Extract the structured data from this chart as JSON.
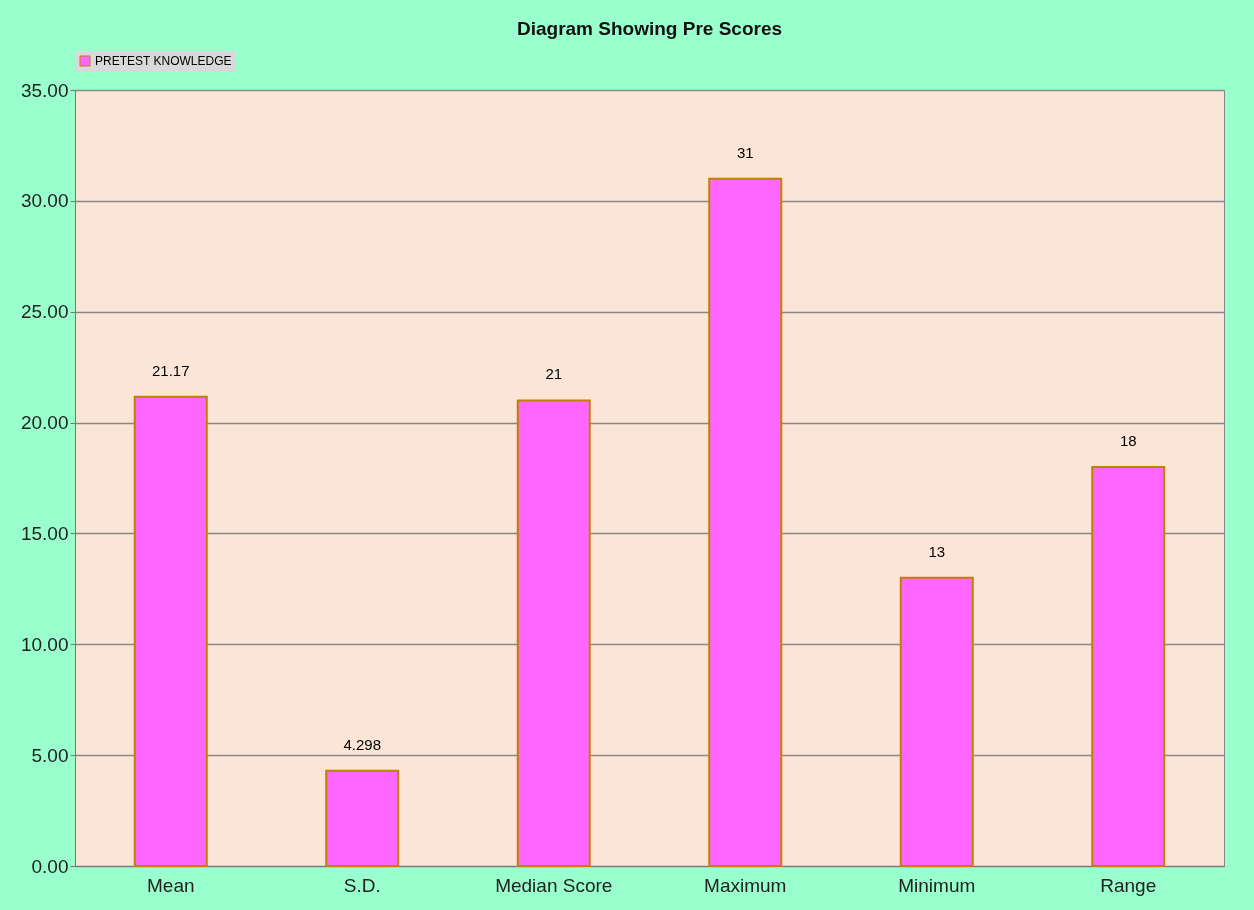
{
  "chart_data": {
    "type": "bar",
    "title": "Diagram Showing Pre Scores",
    "categories": [
      "Mean",
      "S.D.",
      "Median Score",
      "Maximum",
      "Minimum",
      "Range"
    ],
    "series": [
      {
        "name": "PRETEST KNOWLEDGE",
        "color": "#ff66ff",
        "values": [
          21.17,
          4.298,
          21,
          31,
          13,
          18
        ]
      }
    ],
    "ylim": [
      0,
      35
    ],
    "yticks": [
      {
        "value": 0,
        "label": "0.00"
      },
      {
        "value": 5,
        "label": "5.00"
      },
      {
        "value": 10,
        "label": "10.00"
      },
      {
        "value": 15,
        "label": "15.00"
      },
      {
        "value": 20,
        "label": "20.00"
      },
      {
        "value": 25,
        "label": "25.00"
      },
      {
        "value": 30,
        "label": "30.00"
      },
      {
        "value": 35,
        "label": "35.00"
      }
    ],
    "grid": "y",
    "legend": "top",
    "data_labels": true
  }
}
